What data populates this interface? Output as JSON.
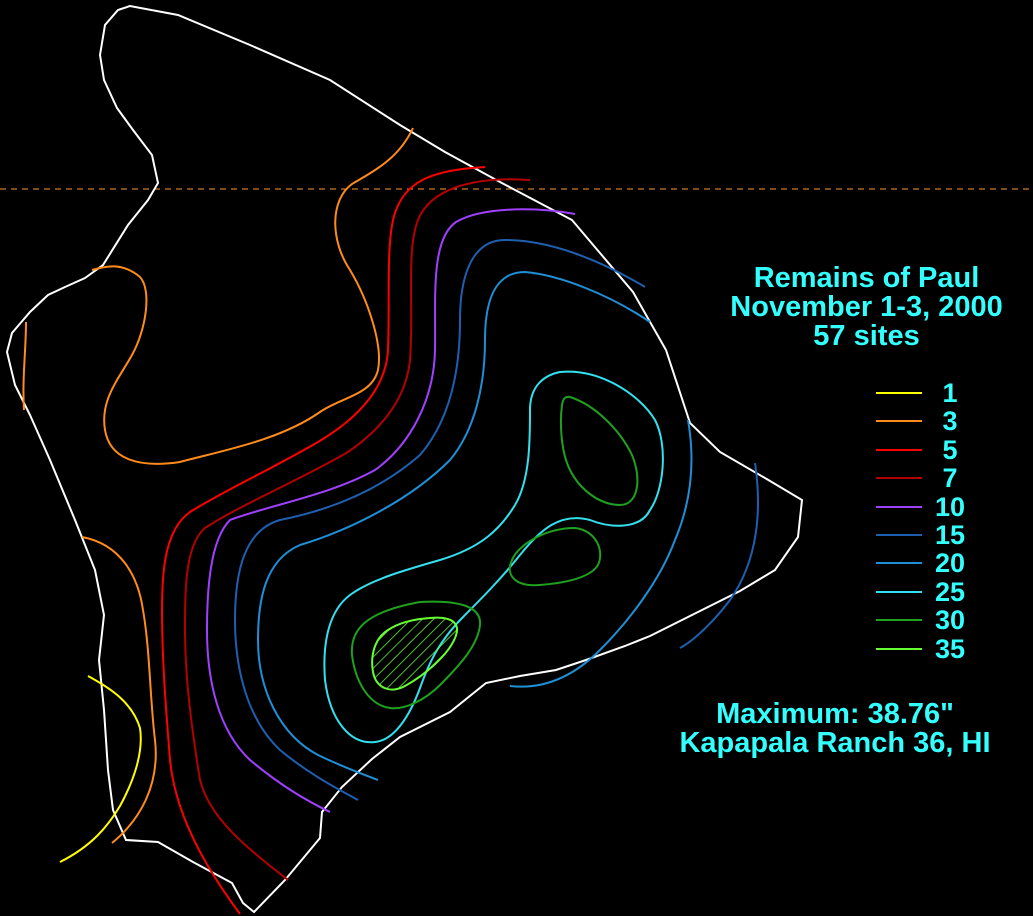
{
  "title": {
    "line1": "Remains of Paul",
    "line2": "November 1-3, 2000",
    "line3": "57 sites"
  },
  "legend": [
    {
      "value": "1",
      "color": "#ffff00"
    },
    {
      "value": "3",
      "color": "#ff8c1a"
    },
    {
      "value": "5",
      "color": "#ff0000"
    },
    {
      "value": "7",
      "color": "#b30000"
    },
    {
      "value": "10",
      "color": "#a040ff"
    },
    {
      "value": "15",
      "color": "#1f5fb0"
    },
    {
      "value": "20",
      "color": "#1f8fd6"
    },
    {
      "value": "25",
      "color": "#33e0ee"
    },
    {
      "value": "30",
      "color": "#1fa01f"
    },
    {
      "value": "35",
      "color": "#66ff33"
    }
  ],
  "maximum": {
    "line1": "Maximum:  38.76\"",
    "line2": "Kapapala Ranch 36, HI"
  },
  "colors": {
    "background": "#000000",
    "text": "#33ffff",
    "coastline": "#ffffff",
    "reference_line": "#ff9933"
  }
}
